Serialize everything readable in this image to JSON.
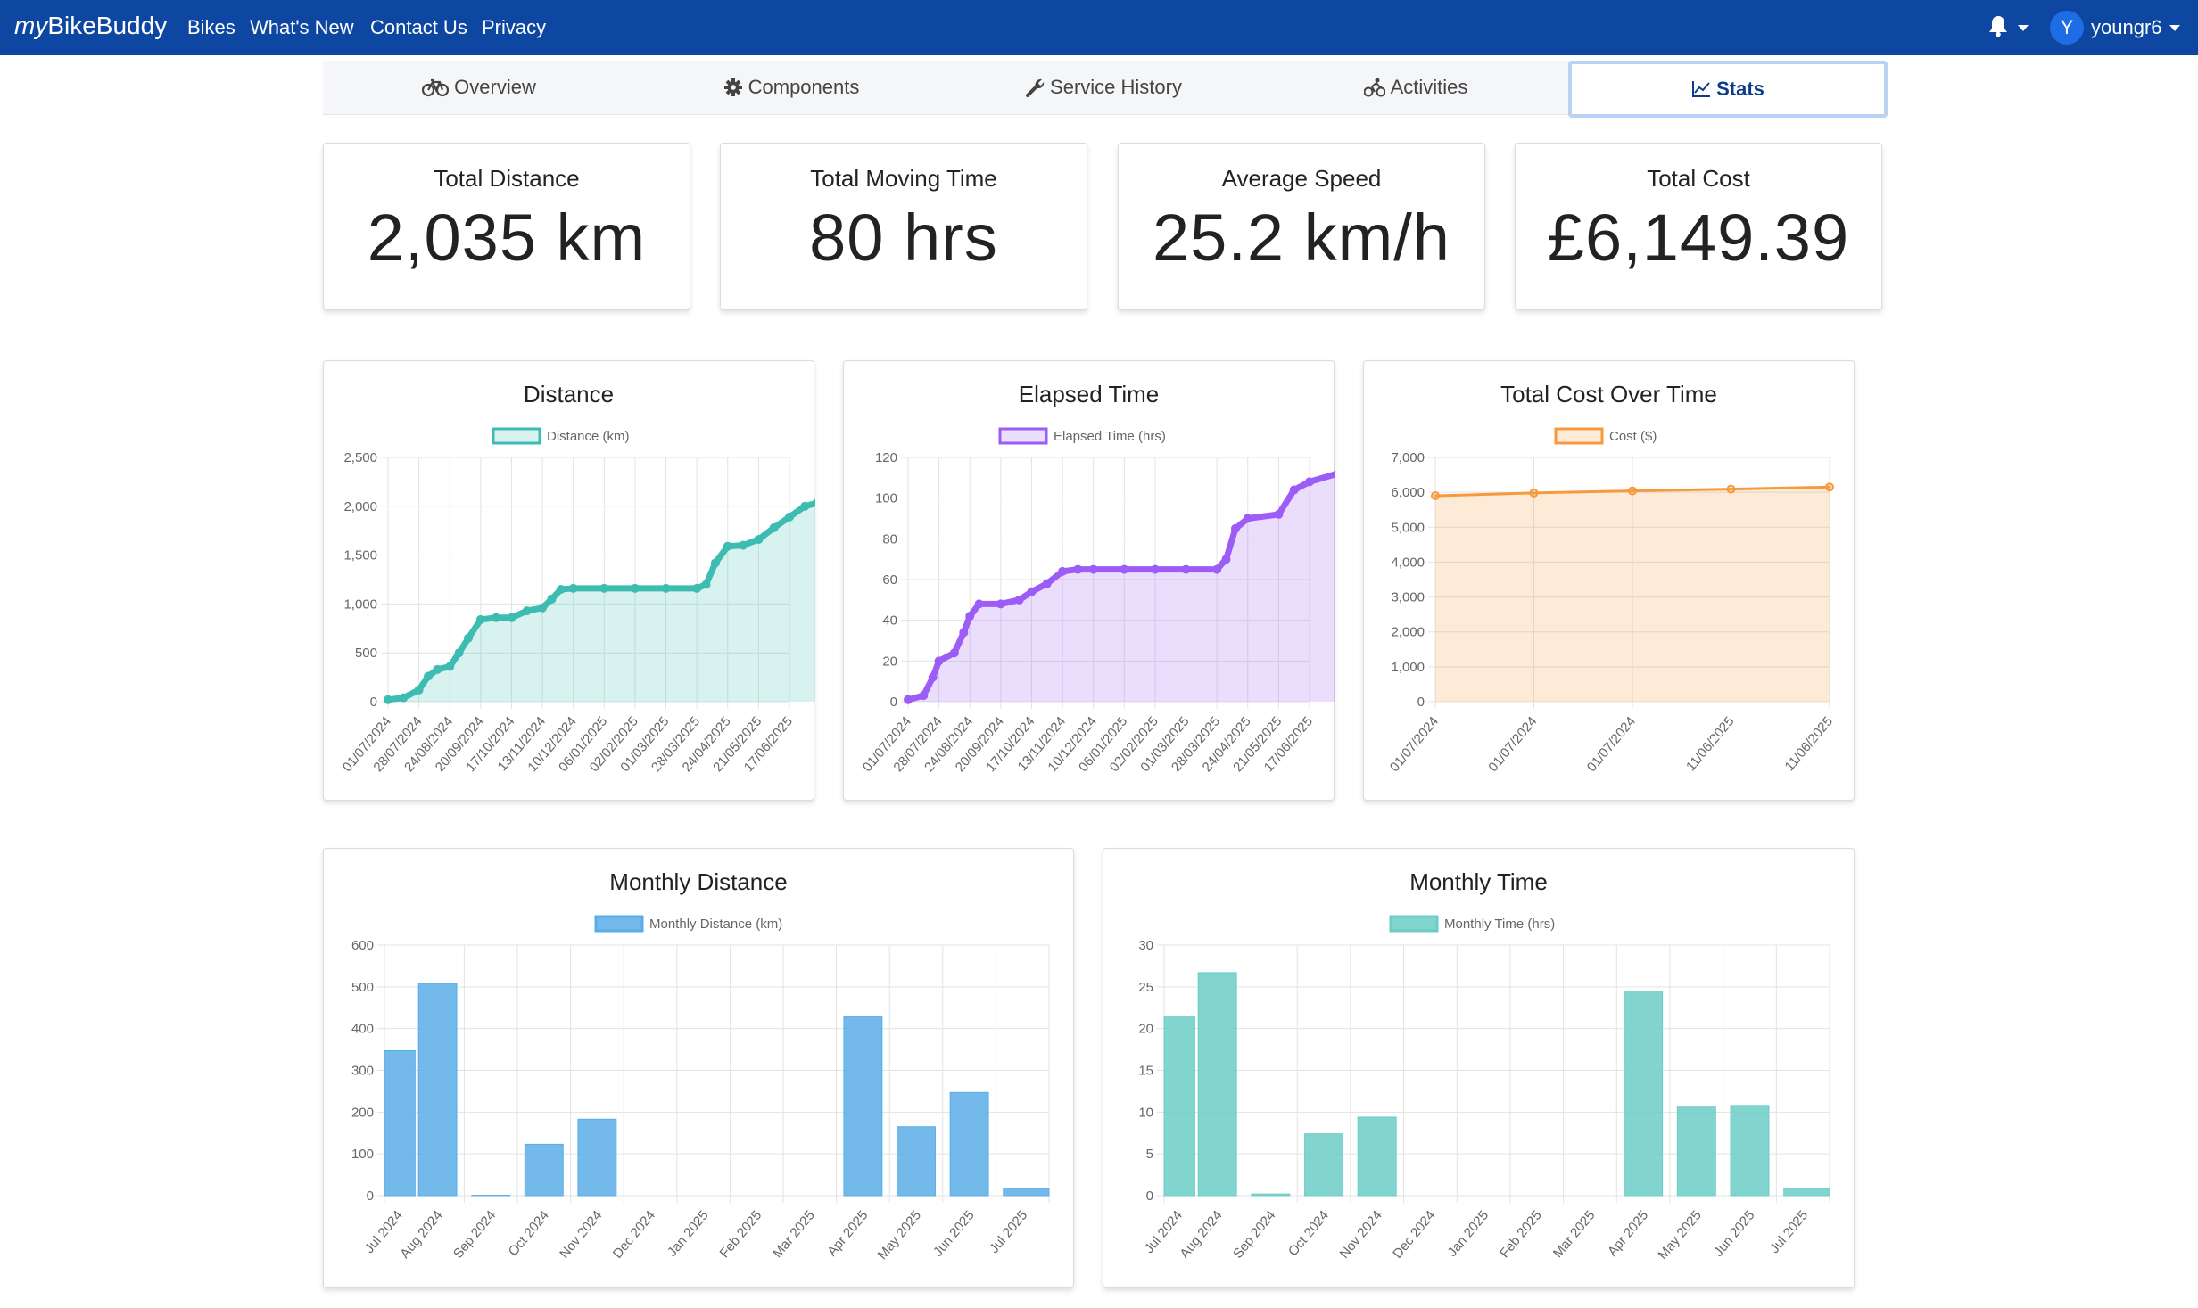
{
  "navbar": {
    "brand_prefix": "my",
    "brand_suffix": "BikeBuddy",
    "links": [
      "Bikes",
      "What's New",
      "Contact Us",
      "Privacy"
    ],
    "avatar_initial": "Y",
    "username": "youngr6"
  },
  "tabs": [
    {
      "label": "Overview",
      "icon": "bicycle-icon"
    },
    {
      "label": "Components",
      "icon": "gear-icon"
    },
    {
      "label": "Service History",
      "icon": "wrench-icon"
    },
    {
      "label": "Activities",
      "icon": "cyclist-icon"
    },
    {
      "label": "Stats",
      "icon": "line-chart-icon"
    }
  ],
  "stats": [
    {
      "label": "Total Distance",
      "value": "2,035 km"
    },
    {
      "label": "Total Moving Time",
      "value": "80 hrs"
    },
    {
      "label": "Average Speed",
      "value": "25.2 km/h"
    },
    {
      "label": "Total Cost",
      "value": "£6,149.39"
    }
  ],
  "colors": {
    "navbar": "#0d47a1",
    "distance": "#3dbdb1",
    "elapsed": "#9c5cf6",
    "cost": "#f79a3e",
    "monthly_distance": "#5aaee8",
    "monthly_time": "#6cccc7"
  },
  "chart_data": [
    {
      "type": "line",
      "title": "Distance",
      "series_name": "Distance (km)",
      "x_ticks": [
        "01/07/2024",
        "28/07/2024",
        "24/08/2024",
        "20/09/2024",
        "17/10/2024",
        "13/11/2024",
        "10/12/2024",
        "06/01/2025",
        "02/02/2025",
        "01/03/2025",
        "28/03/2025",
        "24/04/2025",
        "21/05/2025",
        "17/06/2025"
      ],
      "y_ticks": [
        "0",
        "500",
        "1,000",
        "1,500",
        "2,000",
        "2,500"
      ],
      "ylim": [
        0,
        2500
      ],
      "points": [
        [
          0,
          20
        ],
        [
          0.5,
          40
        ],
        [
          1,
          120
        ],
        [
          1.3,
          260
        ],
        [
          1.6,
          330
        ],
        [
          2,
          360
        ],
        [
          2.3,
          500
        ],
        [
          2.6,
          650
        ],
        [
          3,
          840
        ],
        [
          3.5,
          860
        ],
        [
          4,
          860
        ],
        [
          4.5,
          930
        ],
        [
          5,
          960
        ],
        [
          5.3,
          1050
        ],
        [
          5.6,
          1150
        ],
        [
          6,
          1160
        ],
        [
          7,
          1160
        ],
        [
          8,
          1160
        ],
        [
          9,
          1160
        ],
        [
          10,
          1160
        ],
        [
          10.3,
          1200
        ],
        [
          10.6,
          1420
        ],
        [
          11,
          1590
        ],
        [
          11.5,
          1600
        ],
        [
          12,
          1660
        ],
        [
          12.5,
          1780
        ],
        [
          13,
          1890
        ],
        [
          13.5,
          2000
        ],
        [
          13.9,
          2035
        ]
      ]
    },
    {
      "type": "line",
      "title": "Elapsed Time",
      "series_name": "Elapsed Time (hrs)",
      "x_ticks": [
        "01/07/2024",
        "28/07/2024",
        "24/08/2024",
        "20/09/2024",
        "17/10/2024",
        "13/11/2024",
        "10/12/2024",
        "06/01/2025",
        "02/02/2025",
        "01/03/2025",
        "28/03/2025",
        "24/04/2025",
        "21/05/2025",
        "17/06/2025"
      ],
      "y_ticks": [
        "0",
        "20",
        "40",
        "60",
        "80",
        "100",
        "120"
      ],
      "ylim": [
        0,
        120
      ],
      "points": [
        [
          0,
          1
        ],
        [
          0.5,
          3
        ],
        [
          0.8,
          12
        ],
        [
          1,
          20
        ],
        [
          1.5,
          24
        ],
        [
          1.8,
          34
        ],
        [
          2,
          42
        ],
        [
          2.3,
          48
        ],
        [
          3,
          48
        ],
        [
          3.6,
          50
        ],
        [
          4,
          54
        ],
        [
          4.5,
          58
        ],
        [
          5,
          64
        ],
        [
          5.5,
          65
        ],
        [
          6,
          65
        ],
        [
          7,
          65
        ],
        [
          8,
          65
        ],
        [
          9,
          65
        ],
        [
          10,
          65
        ],
        [
          10.3,
          70
        ],
        [
          10.6,
          85
        ],
        [
          11,
          90
        ],
        [
          12,
          92
        ],
        [
          12.5,
          104
        ],
        [
          13,
          108
        ],
        [
          13.9,
          112
        ]
      ]
    },
    {
      "type": "line",
      "title": "Total Cost Over Time",
      "series_name": "Cost ($)",
      "x_ticks": [
        "01/07/2024",
        "01/07/2024",
        "01/07/2024",
        "11/06/2025",
        "11/06/2025"
      ],
      "y_ticks": [
        "0",
        "1,000",
        "2,000",
        "3,000",
        "4,000",
        "5,000",
        "6,000",
        "7,000"
      ],
      "ylim": [
        0,
        7000
      ],
      "points": [
        [
          0,
          5900
        ],
        [
          1,
          5980
        ],
        [
          2,
          6040
        ],
        [
          3,
          6090
        ],
        [
          4,
          6149
        ]
      ]
    },
    {
      "type": "bar",
      "title": "Monthly Distance",
      "series_name": "Monthly Distance (km)",
      "categories": [
        "Jul 2024",
        "Aug 2024",
        "Sep 2024",
        "Oct 2024",
        "Nov 2024",
        "Dec 2024",
        "Jan 2025",
        "Feb 2025",
        "Mar 2025",
        "Apr 2025",
        "May 2025",
        "Jun 2025",
        "Jul 2025"
      ],
      "values": [
        347,
        508,
        1,
        123,
        183,
        0,
        0,
        0,
        0,
        428,
        165,
        247,
        18
      ],
      "y_ticks": [
        "0",
        "100",
        "200",
        "300",
        "400",
        "500",
        "600"
      ],
      "ylim": [
        0,
        600
      ]
    },
    {
      "type": "bar",
      "title": "Monthly Time",
      "series_name": "Monthly Time (hrs)",
      "categories": [
        "Jul 2024",
        "Aug 2024",
        "Sep 2024",
        "Oct 2024",
        "Nov 2024",
        "Dec 2024",
        "Jan 2025",
        "Feb 2025",
        "Mar 2025",
        "Apr 2025",
        "May 2025",
        "Jun 2025",
        "Jul 2025"
      ],
      "values": [
        21.5,
        26.7,
        0.2,
        7.4,
        9.4,
        0,
        0,
        0,
        0,
        24.5,
        10.6,
        10.8,
        0.9
      ],
      "y_ticks": [
        "0",
        "5",
        "10",
        "15",
        "20",
        "25",
        "30"
      ],
      "ylim": [
        0,
        30
      ]
    }
  ]
}
